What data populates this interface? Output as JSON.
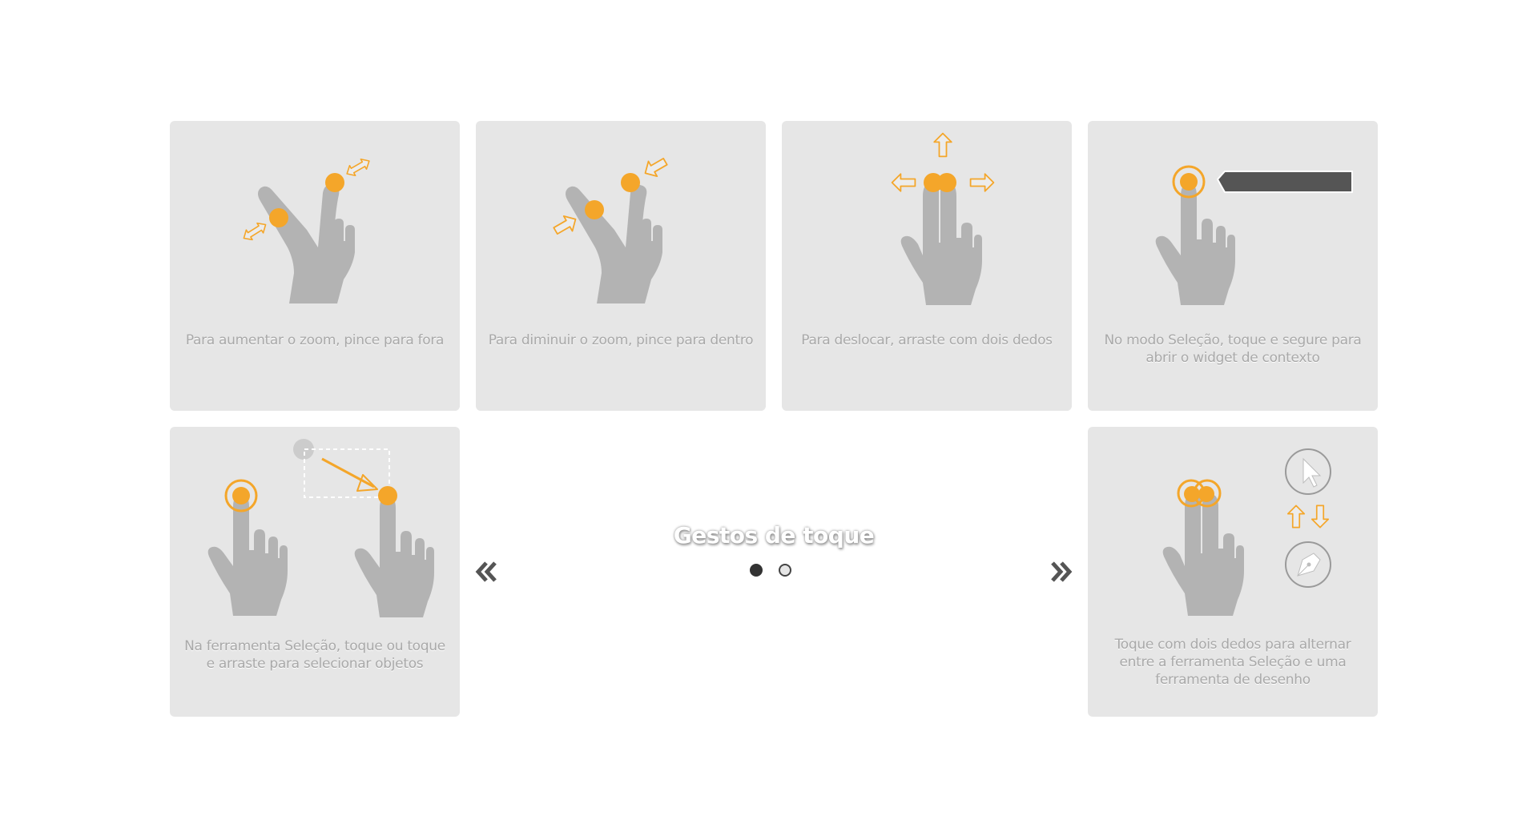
{
  "carousel": {
    "title": "Gestos de toque",
    "prev_icon": "double-chevron-left-icon",
    "next_icon": "double-chevron-right-icon",
    "pages": [
      "page-1",
      "page-2"
    ],
    "active_page": 1
  },
  "cards": [
    {
      "caption": "Para aumentar o zoom, pince para fora",
      "icon": "pinch-out-icon"
    },
    {
      "caption": "Para diminuir o zoom, pince para dentro",
      "icon": "pinch-in-icon"
    },
    {
      "caption": "Para deslocar, arraste com dois dedos",
      "icon": "two-finger-pan-icon"
    },
    {
      "caption": "No modo Seleção, toque e segure para abrir o widget de contexto",
      "icon": "tap-hold-icon"
    },
    {
      "caption": "Na ferramenta Seleção, toque ou toque e arraste para selecionar objetos",
      "icon": "tap-drag-select-icon"
    },
    {
      "caption": "Toque com dois dedos para alternar entre a ferramenta Seleção e uma ferramenta de desenho",
      "icon": "two-finger-tap-toggle-icon"
    }
  ],
  "colors": {
    "card_bg": "#e6e6e6",
    "hand": "#b3b3b3",
    "accent": "#f4a62a",
    "caption": "#a9a9a9",
    "widget": "#555555"
  }
}
